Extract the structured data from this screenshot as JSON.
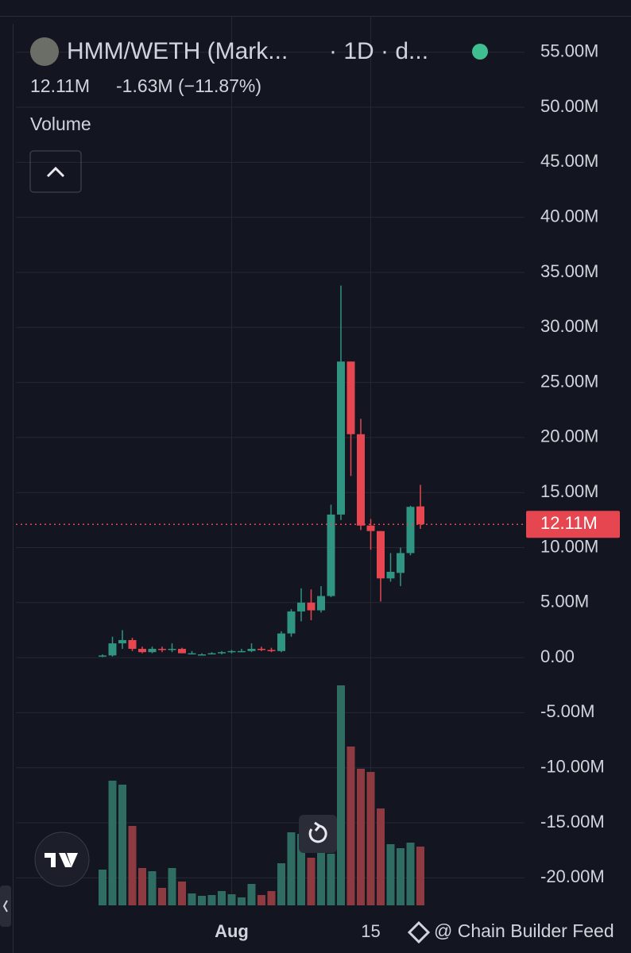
{
  "header": {
    "title": "HMM/WETH (Mark...",
    "interval": "· 1D · d...",
    "last": "12.11M",
    "change": "-1.63M (−11.87%)",
    "indicator": "Volume"
  },
  "watermark": "@ Chain Builder Feed",
  "chart_data": {
    "type": "candlestick",
    "categories": [
      null,
      null,
      null,
      null,
      null,
      null,
      null,
      null,
      null,
      null,
      null,
      null,
      null,
      "Aug",
      null,
      null,
      null,
      null,
      null,
      null,
      null,
      null,
      null,
      null,
      null,
      null,
      null,
      "15",
      null,
      null,
      null,
      null,
      null
    ],
    "open": [
      100000,
      200000,
      1300000,
      1600000,
      800000,
      500000,
      800000,
      700000,
      800000,
      400000,
      300000,
      300000,
      400000,
      500000,
      600000,
      600000,
      800000,
      700000,
      600000,
      2200000,
      4200000,
      5000000,
      4300000,
      5600000,
      13000000,
      26900000,
      20300000,
      12000000,
      11500000,
      7200000,
      7700000,
      9500000,
      13740000
    ],
    "high": [
      300000,
      1900000,
      2500000,
      1800000,
      1000000,
      1000000,
      1000000,
      1300000,
      900000,
      600000,
      400000,
      500000,
      600000,
      700000,
      800000,
      1300000,
      1000000,
      900000,
      2400000,
      4400000,
      6300000,
      6200000,
      6500000,
      13900000,
      33800000,
      26900000,
      21700000,
      12600000,
      11500000,
      9500000,
      10000000,
      13800000,
      15700000
    ],
    "low": [
      50000,
      100000,
      800000,
      600000,
      400000,
      400000,
      500000,
      500000,
      400000,
      300000,
      200000,
      300000,
      300000,
      400000,
      500000,
      500000,
      600000,
      500000,
      500000,
      1900000,
      3300000,
      3400000,
      4100000,
      5500000,
      12500000,
      16500000,
      11600000,
      9800000,
      5100000,
      6900000,
      6500000,
      9300000,
      11700000
    ],
    "close": [
      200000,
      1300000,
      1600000,
      800000,
      500000,
      800000,
      700000,
      800000,
      400000,
      400000,
      300000,
      400000,
      500000,
      600000,
      600000,
      800000,
      700000,
      600000,
      2200000,
      4200000,
      5000000,
      4300000,
      5600000,
      13000000,
      26900000,
      20300000,
      12000000,
      11500000,
      7200000,
      7800000,
      9500000,
      13700000,
      12110000
    ],
    "volume": [
      45,
      157,
      152,
      100,
      47,
      43,
      22,
      47,
      30,
      15,
      12,
      13,
      18,
      14,
      10,
      27,
      13,
      18,
      53,
      92,
      90,
      60,
      95,
      65,
      277,
      200,
      172,
      168,
      122,
      77,
      72,
      79,
      74
    ],
    "up_color": "#2f9482",
    "down_color": "#e5464f",
    "volume_up_color": "#2f6c62",
    "volume_down_color": "#8e3a41",
    "ylim": [
      -22500000,
      58300000
    ],
    "yticks": [
      {
        "value": -20000000,
        "label": "-20.00M"
      },
      {
        "value": -15000000,
        "label": "-15.00M"
      },
      {
        "value": -10000000,
        "label": "-10.00M"
      },
      {
        "value": -5000000,
        "label": "-5.00M"
      },
      {
        "value": 0,
        "label": "0.00"
      },
      {
        "value": 5000000,
        "label": "5.00M"
      },
      {
        "value": 10000000,
        "label": "10.00M"
      },
      {
        "value": 15000000,
        "label": "15.00M"
      },
      {
        "value": 20000000,
        "label": "20.00M"
      },
      {
        "value": 25000000,
        "label": "25.00M"
      },
      {
        "value": 30000000,
        "label": "30.00M"
      },
      {
        "value": 35000000,
        "label": "35.00M"
      },
      {
        "value": 40000000,
        "label": "40.00M"
      },
      {
        "value": 45000000,
        "label": "45.00M"
      },
      {
        "value": 50000000,
        "label": "50.00M"
      },
      {
        "value": 55000000,
        "label": "55.00M"
      }
    ],
    "last_price": {
      "value": 12110000,
      "label": "12.11M"
    },
    "grid": true
  }
}
